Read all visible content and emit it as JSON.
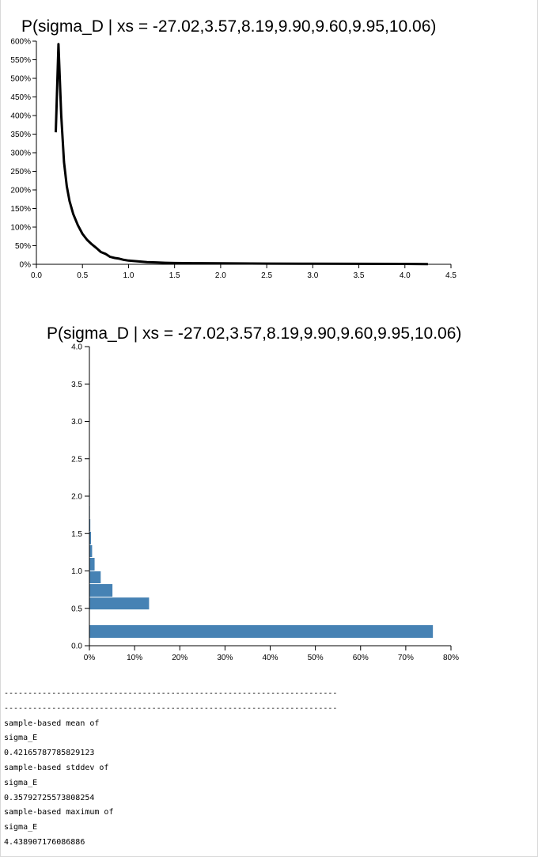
{
  "chart_data": [
    {
      "type": "line",
      "title": "P(sigma_D | xs = -27.02,3.57,8.19,9.90,9.60,9.95,10.06)",
      "xlim": [
        0,
        4.5
      ],
      "ylim": [
        0,
        6
      ],
      "x_ticks": [
        "0.0",
        "0.5",
        "1.0",
        "1.5",
        "2.0",
        "2.5",
        "3.0",
        "3.5",
        "4.0",
        "4.5"
      ],
      "y_ticks": [
        "0%",
        "50%",
        "100%",
        "150%",
        "200%",
        "250%",
        "300%",
        "350%",
        "400%",
        "450%",
        "500%",
        "550%",
        "600%"
      ],
      "y_tick_values": [
        0,
        0.5,
        1,
        1.5,
        2,
        2.5,
        3,
        3.5,
        4,
        4.5,
        5,
        5.5,
        6
      ],
      "x_tick_values": [
        0,
        0.5,
        1,
        1.5,
        2,
        2.5,
        3,
        3.5,
        4,
        4.5
      ],
      "series": [
        {
          "x": [
            0.21,
            0.24,
            0.27,
            0.3,
            0.33,
            0.36,
            0.4,
            0.45,
            0.5,
            0.55,
            0.6,
            0.65,
            0.7,
            0.75,
            0.8,
            0.85,
            0.9,
            0.95,
            1.0,
            1.1,
            1.2,
            1.3,
            1.4,
            1.5,
            1.7,
            2.0,
            2.5,
            3.0,
            3.5,
            4.0,
            4.25
          ],
          "y": [
            3.55,
            5.92,
            4.0,
            2.75,
            2.1,
            1.7,
            1.35,
            1.05,
            0.82,
            0.66,
            0.54,
            0.44,
            0.33,
            0.28,
            0.2,
            0.17,
            0.15,
            0.12,
            0.1,
            0.08,
            0.06,
            0.05,
            0.04,
            0.035,
            0.03,
            0.025,
            0.02,
            0.015,
            0.012,
            0.01,
            0.005
          ]
        }
      ]
    },
    {
      "type": "bar",
      "orientation": "horizontal",
      "title": "P(sigma_D | xs = -27.02,3.57,8.19,9.90,9.60,9.95,10.06)",
      "ylim": [
        0,
        4
      ],
      "xlim": [
        0,
        80
      ],
      "y_ticks": [
        "0.0",
        "0.5",
        "1.0",
        "1.5",
        "2.0",
        "2.5",
        "3.0",
        "3.5",
        "4.0"
      ],
      "y_tick_values": [
        0,
        0.5,
        1,
        1.5,
        2,
        2.5,
        3,
        3.5,
        4
      ],
      "x_ticks": [
        "0%",
        "10%",
        "20%",
        "30%",
        "40%",
        "50%",
        "60%",
        "70%",
        "80%"
      ],
      "x_tick_values": [
        0,
        10,
        20,
        30,
        40,
        50,
        60,
        70,
        80
      ],
      "bins": [
        {
          "from": 0.1,
          "to": 0.28,
          "value": 76.0
        },
        {
          "from": 0.48,
          "to": 0.65,
          "value": 13.2
        },
        {
          "from": 0.65,
          "to": 0.83,
          "value": 5.1
        },
        {
          "from": 0.83,
          "to": 1.0,
          "value": 2.5
        },
        {
          "from": 1.0,
          "to": 1.18,
          "value": 1.15
        },
        {
          "from": 1.18,
          "to": 1.35,
          "value": 0.6
        },
        {
          "from": 1.35,
          "to": 1.53,
          "value": 0.35
        },
        {
          "from": 1.53,
          "to": 1.7,
          "value": 0.2
        },
        {
          "from": 1.7,
          "to": 1.88,
          "value": 0.12
        },
        {
          "from": 1.88,
          "to": 2.05,
          "value": 0.07
        },
        {
          "from": 2.05,
          "to": 2.23,
          "value": 0.04
        }
      ]
    }
  ],
  "console": {
    "lines": [
      "----------------------------------------------------------------------",
      "----------------------------------------------------------------------",
      "sample-based mean of",
      "sigma_E",
      "0.42165787785829123",
      "sample-based stddev of",
      "sigma_E",
      "0.35792725573808254",
      "sample-based maximum of",
      "sigma_E",
      "4.438907176086886"
    ]
  }
}
